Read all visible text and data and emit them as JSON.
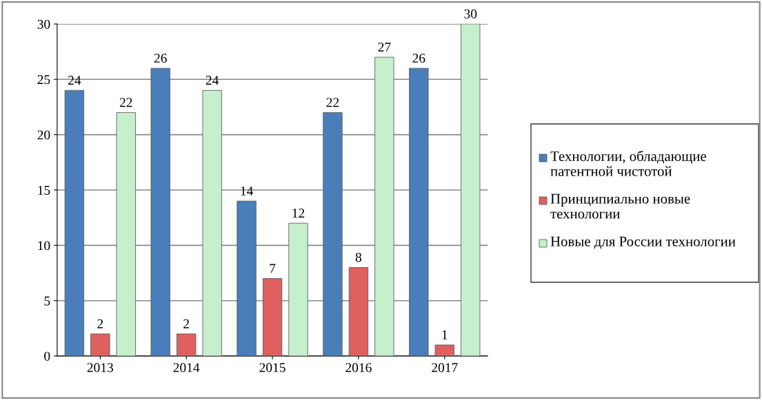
{
  "chart_data": {
    "type": "bar",
    "categories": [
      "2013",
      "2014",
      "2015",
      "2016",
      "2017"
    ],
    "series": [
      {
        "name": "Технологии, обладающие патентной чистотой",
        "color": "#4a7ebb",
        "values": [
          24,
          26,
          14,
          22,
          26
        ]
      },
      {
        "name": "Принципиально новые технологии",
        "color": "#e06060",
        "values": [
          2,
          2,
          7,
          8,
          1
        ]
      },
      {
        "name": "Новые для России технологии",
        "color": "#c6efce",
        "values": [
          22,
          24,
          12,
          27,
          30
        ]
      }
    ],
    "ylim": [
      0,
      30
    ],
    "yticks": [
      0,
      5,
      10,
      15,
      20,
      25,
      30
    ],
    "grid": "y",
    "legend": "right",
    "data_labels": true
  }
}
